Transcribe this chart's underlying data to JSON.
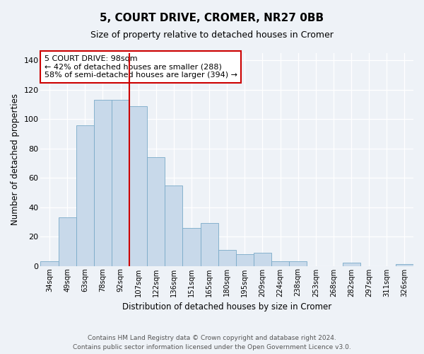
{
  "title": "5, COURT DRIVE, CROMER, NR27 0BB",
  "subtitle": "Size of property relative to detached houses in Cromer",
  "xlabel": "Distribution of detached houses by size in Cromer",
  "ylabel": "Number of detached properties",
  "bar_color": "#c8d9ea",
  "bar_edge_color": "#7aaac8",
  "background_color": "#eef2f7",
  "grid_color": "#ffffff",
  "categories": [
    "34sqm",
    "49sqm",
    "63sqm",
    "78sqm",
    "92sqm",
    "107sqm",
    "122sqm",
    "136sqm",
    "151sqm",
    "165sqm",
    "180sqm",
    "195sqm",
    "209sqm",
    "224sqm",
    "238sqm",
    "253sqm",
    "268sqm",
    "282sqm",
    "297sqm",
    "311sqm",
    "326sqm"
  ],
  "values": [
    3,
    33,
    96,
    113,
    113,
    109,
    74,
    55,
    26,
    29,
    11,
    8,
    9,
    3,
    3,
    0,
    0,
    2,
    0,
    0,
    1
  ],
  "ylim": [
    0,
    145
  ],
  "yticks": [
    0,
    20,
    40,
    60,
    80,
    100,
    120,
    140
  ],
  "property_line_x": 4.5,
  "annotation_line1": "5 COURT DRIVE: 98sqm",
  "annotation_line2": "← 42% of detached houses are smaller (288)",
  "annotation_line3": "58% of semi-detached houses are larger (394) →",
  "annotation_box_color": "#cc0000",
  "footnote1": "Contains HM Land Registry data © Crown copyright and database right 2024.",
  "footnote2": "Contains public sector information licensed under the Open Government Licence v3.0."
}
